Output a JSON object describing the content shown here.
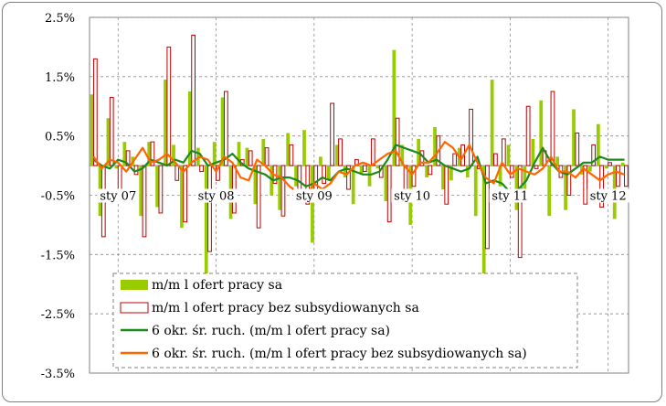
{
  "chart_data": {
    "type": "bar",
    "xlabel": "",
    "ylabel": "",
    "ylim": [
      -3.5,
      2.5
    ],
    "y_ticks": [
      "2.5%",
      "1.5%",
      "0.5%",
      "-0.5%",
      "-1.5%",
      "-2.5%",
      "-3.5%"
    ],
    "y_tick_values": [
      2.5,
      1.5,
      0.5,
      -0.5,
      -1.5,
      -2.5,
      -3.5
    ],
    "x_ticks": [
      "sty 07",
      "sty 08",
      "sty 09",
      "sty 10",
      "sty 11",
      "sty 12"
    ],
    "x_tick_index": [
      0,
      12,
      24,
      36,
      48,
      60
    ],
    "grid": "dashed",
    "legend_position": "bottom-left inside",
    "n_months": 66,
    "series": [
      {
        "name": "m/m l ofert pracy sa",
        "kind": "bar",
        "color": "#99cc00",
        "values": [
          1.2,
          -0.85,
          0.8,
          -0.05,
          0.4,
          0.15,
          -0.85,
          0.4,
          -0.7,
          1.45,
          0.35,
          -1.05,
          1.25,
          0.3,
          -1.95,
          0.4,
          1.15,
          -0.9,
          0.4,
          0.3,
          -0.65,
          0.45,
          -0.5,
          -0.75,
          0.55,
          -0.35,
          0.6,
          -1.3,
          0.15,
          -0.25,
          0.35,
          -0.2,
          -0.65,
          -0.15,
          -0.35,
          -0.05,
          -0.6,
          1.95,
          0.35,
          -1.0,
          0.45,
          -0.2,
          0.65,
          -0.4,
          -0.25,
          0.3,
          -0.2,
          -0.85,
          -2.85,
          1.45,
          -0.35,
          0.35,
          -0.75,
          -0.55,
          0.45,
          1.1,
          -0.85,
          0.15,
          -0.75,
          0.95,
          -0.15,
          -0.1,
          0.7,
          -0.05,
          -0.9,
          0.05
        ]
      },
      {
        "name": "m/m l ofert pracy bez subsydiowanych sa",
        "kind": "bar-outline",
        "color": "#c00000",
        "values": [
          1.8,
          -1.2,
          1.15,
          -0.4,
          0.25,
          -0.15,
          -1.2,
          0.4,
          -0.8,
          2.0,
          -0.25,
          -0.95,
          2.2,
          -0.1,
          -1.45,
          -0.25,
          1.25,
          -0.8,
          0.1,
          0.25,
          -1.05,
          0.3,
          -0.3,
          -0.85,
          0.35,
          -0.5,
          -0.65,
          -0.5,
          -0.3,
          1.05,
          0.45,
          -0.4,
          0.1,
          -0.1,
          0.45,
          -0.2,
          -0.95,
          0.8,
          -0.5,
          -0.35,
          0.25,
          -0.15,
          0.5,
          -0.65,
          0.2,
          0.35,
          0.95,
          -0.05,
          -1.4,
          0.2,
          0.45,
          -0.2,
          -1.55,
          1.0,
          -0.05,
          0.25,
          1.25,
          -0.2,
          -0.5,
          0.55,
          -0.65,
          0.35,
          -0.7,
          0.05,
          -0.35,
          -0.35
        ]
      },
      {
        "name": "6 okr. śr. ruch. (m/m l ofert pracy sa)",
        "kind": "line",
        "color": "#1b8a1b",
        "values": [
          0.1,
          0.0,
          -0.05,
          0.1,
          0.05,
          -0.1,
          -0.05,
          0.1,
          0.05,
          0.0,
          0.1,
          0.05,
          0.25,
          0.2,
          0.0,
          0.05,
          0.1,
          0.2,
          0.05,
          -0.05,
          -0.1,
          -0.15,
          -0.25,
          -0.2,
          -0.2,
          -0.25,
          -0.35,
          -0.3,
          -0.2,
          -0.25,
          -0.1,
          -0.05,
          -0.1,
          -0.15,
          -0.15,
          -0.1,
          0.1,
          0.35,
          0.3,
          0.25,
          0.2,
          0.05,
          0.1,
          0.0,
          -0.05,
          -0.1,
          -0.05,
          0.15,
          -0.3,
          -0.25,
          -0.3,
          -0.45,
          -0.4,
          -0.25,
          0.05,
          0.3,
          0.05,
          -0.1,
          -0.15,
          -0.05,
          0.05,
          0.05,
          0.15,
          0.1,
          0.1,
          0.1
        ]
      },
      {
        "name": "6 okr. śr. ruch. (m/m l ofert pracy bez subsydiowanych sa)",
        "kind": "line",
        "color": "#ff6600",
        "values": [
          0.15,
          -0.05,
          0.1,
          0.05,
          -0.1,
          0.1,
          0.3,
          0.05,
          0.1,
          0.2,
          0.05,
          -0.1,
          0.05,
          0.15,
          0.1,
          -0.1,
          0.15,
          0.05,
          -0.2,
          -0.25,
          0.1,
          0.0,
          -0.15,
          -0.2,
          -0.35,
          -0.45,
          -0.55,
          -0.3,
          -0.4,
          -0.3,
          -0.1,
          -0.15,
          0.0,
          0.05,
          0.0,
          0.1,
          0.2,
          0.25,
          0.0,
          -0.15,
          0.05,
          0.05,
          0.2,
          0.4,
          0.3,
          0.1,
          0.35,
          0.05,
          -0.2,
          -0.3,
          0.05,
          -0.15,
          -0.05,
          -0.1,
          -0.15,
          -0.05,
          0.15,
          -0.1,
          -0.1,
          -0.2,
          -0.05,
          -0.15,
          -0.25,
          -0.15,
          -0.1,
          -0.15
        ]
      }
    ]
  }
}
